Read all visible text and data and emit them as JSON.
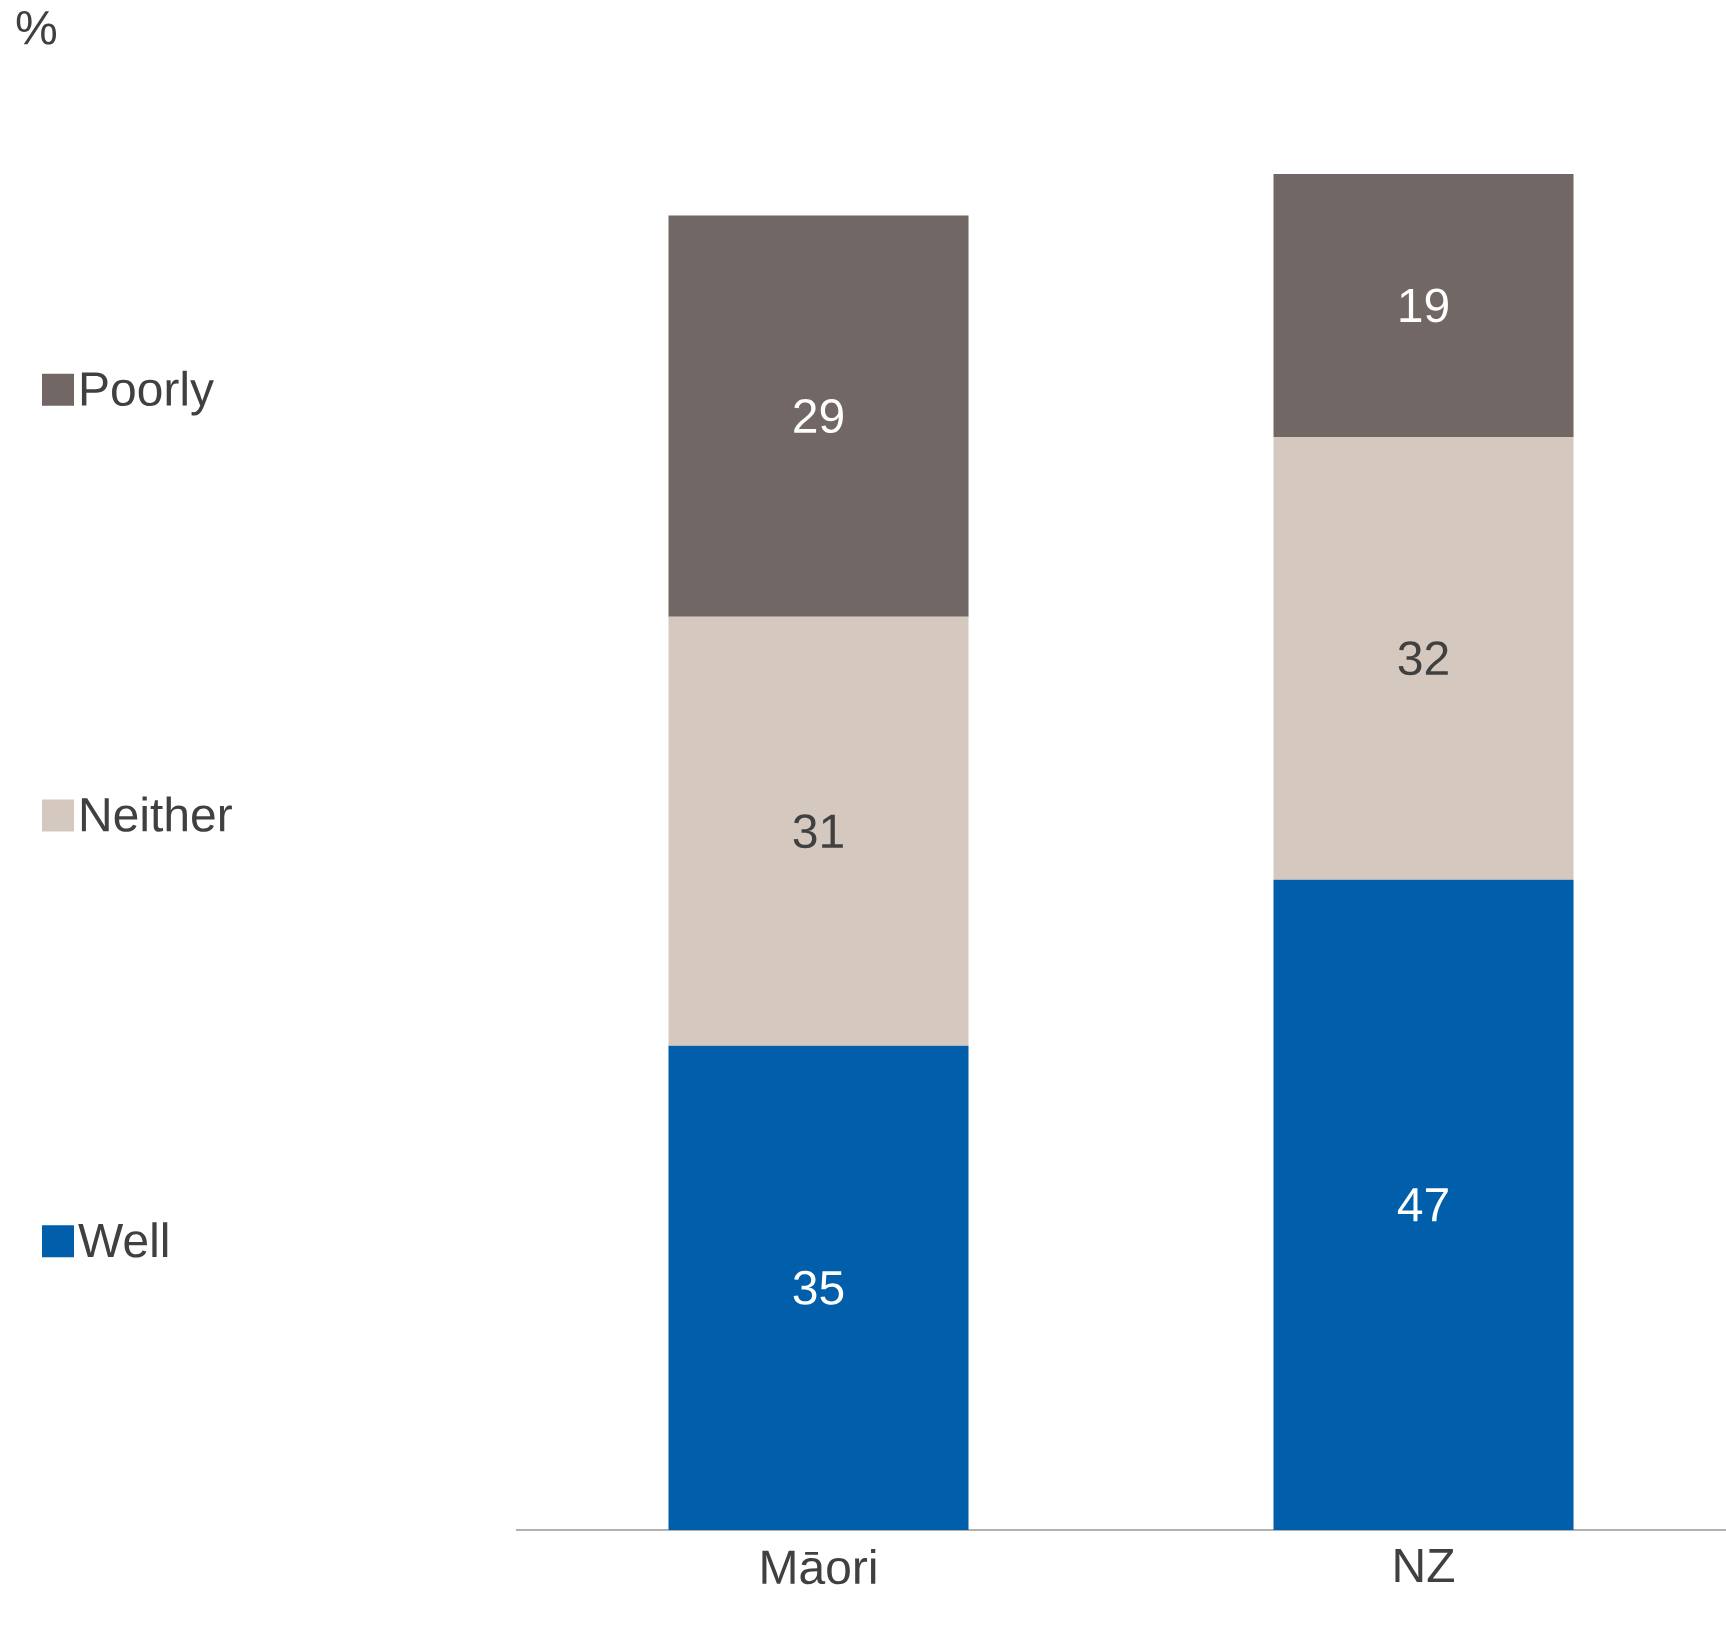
{
  "chart_data": {
    "type": "bar",
    "stacked": true,
    "annotations": [
      "%"
    ],
    "categories": [
      "Māori",
      "NZ"
    ],
    "series": [
      {
        "name": "Well",
        "color": "#005eaa",
        "values": [
          35,
          47
        ]
      },
      {
        "name": "Neither",
        "color": "#d5c9bf",
        "values": [
          31,
          32
        ]
      },
      {
        "name": "Poorly",
        "color": "#716765",
        "values": [
          29,
          19
        ]
      }
    ],
    "data_labels": true,
    "legend": "left"
  }
}
